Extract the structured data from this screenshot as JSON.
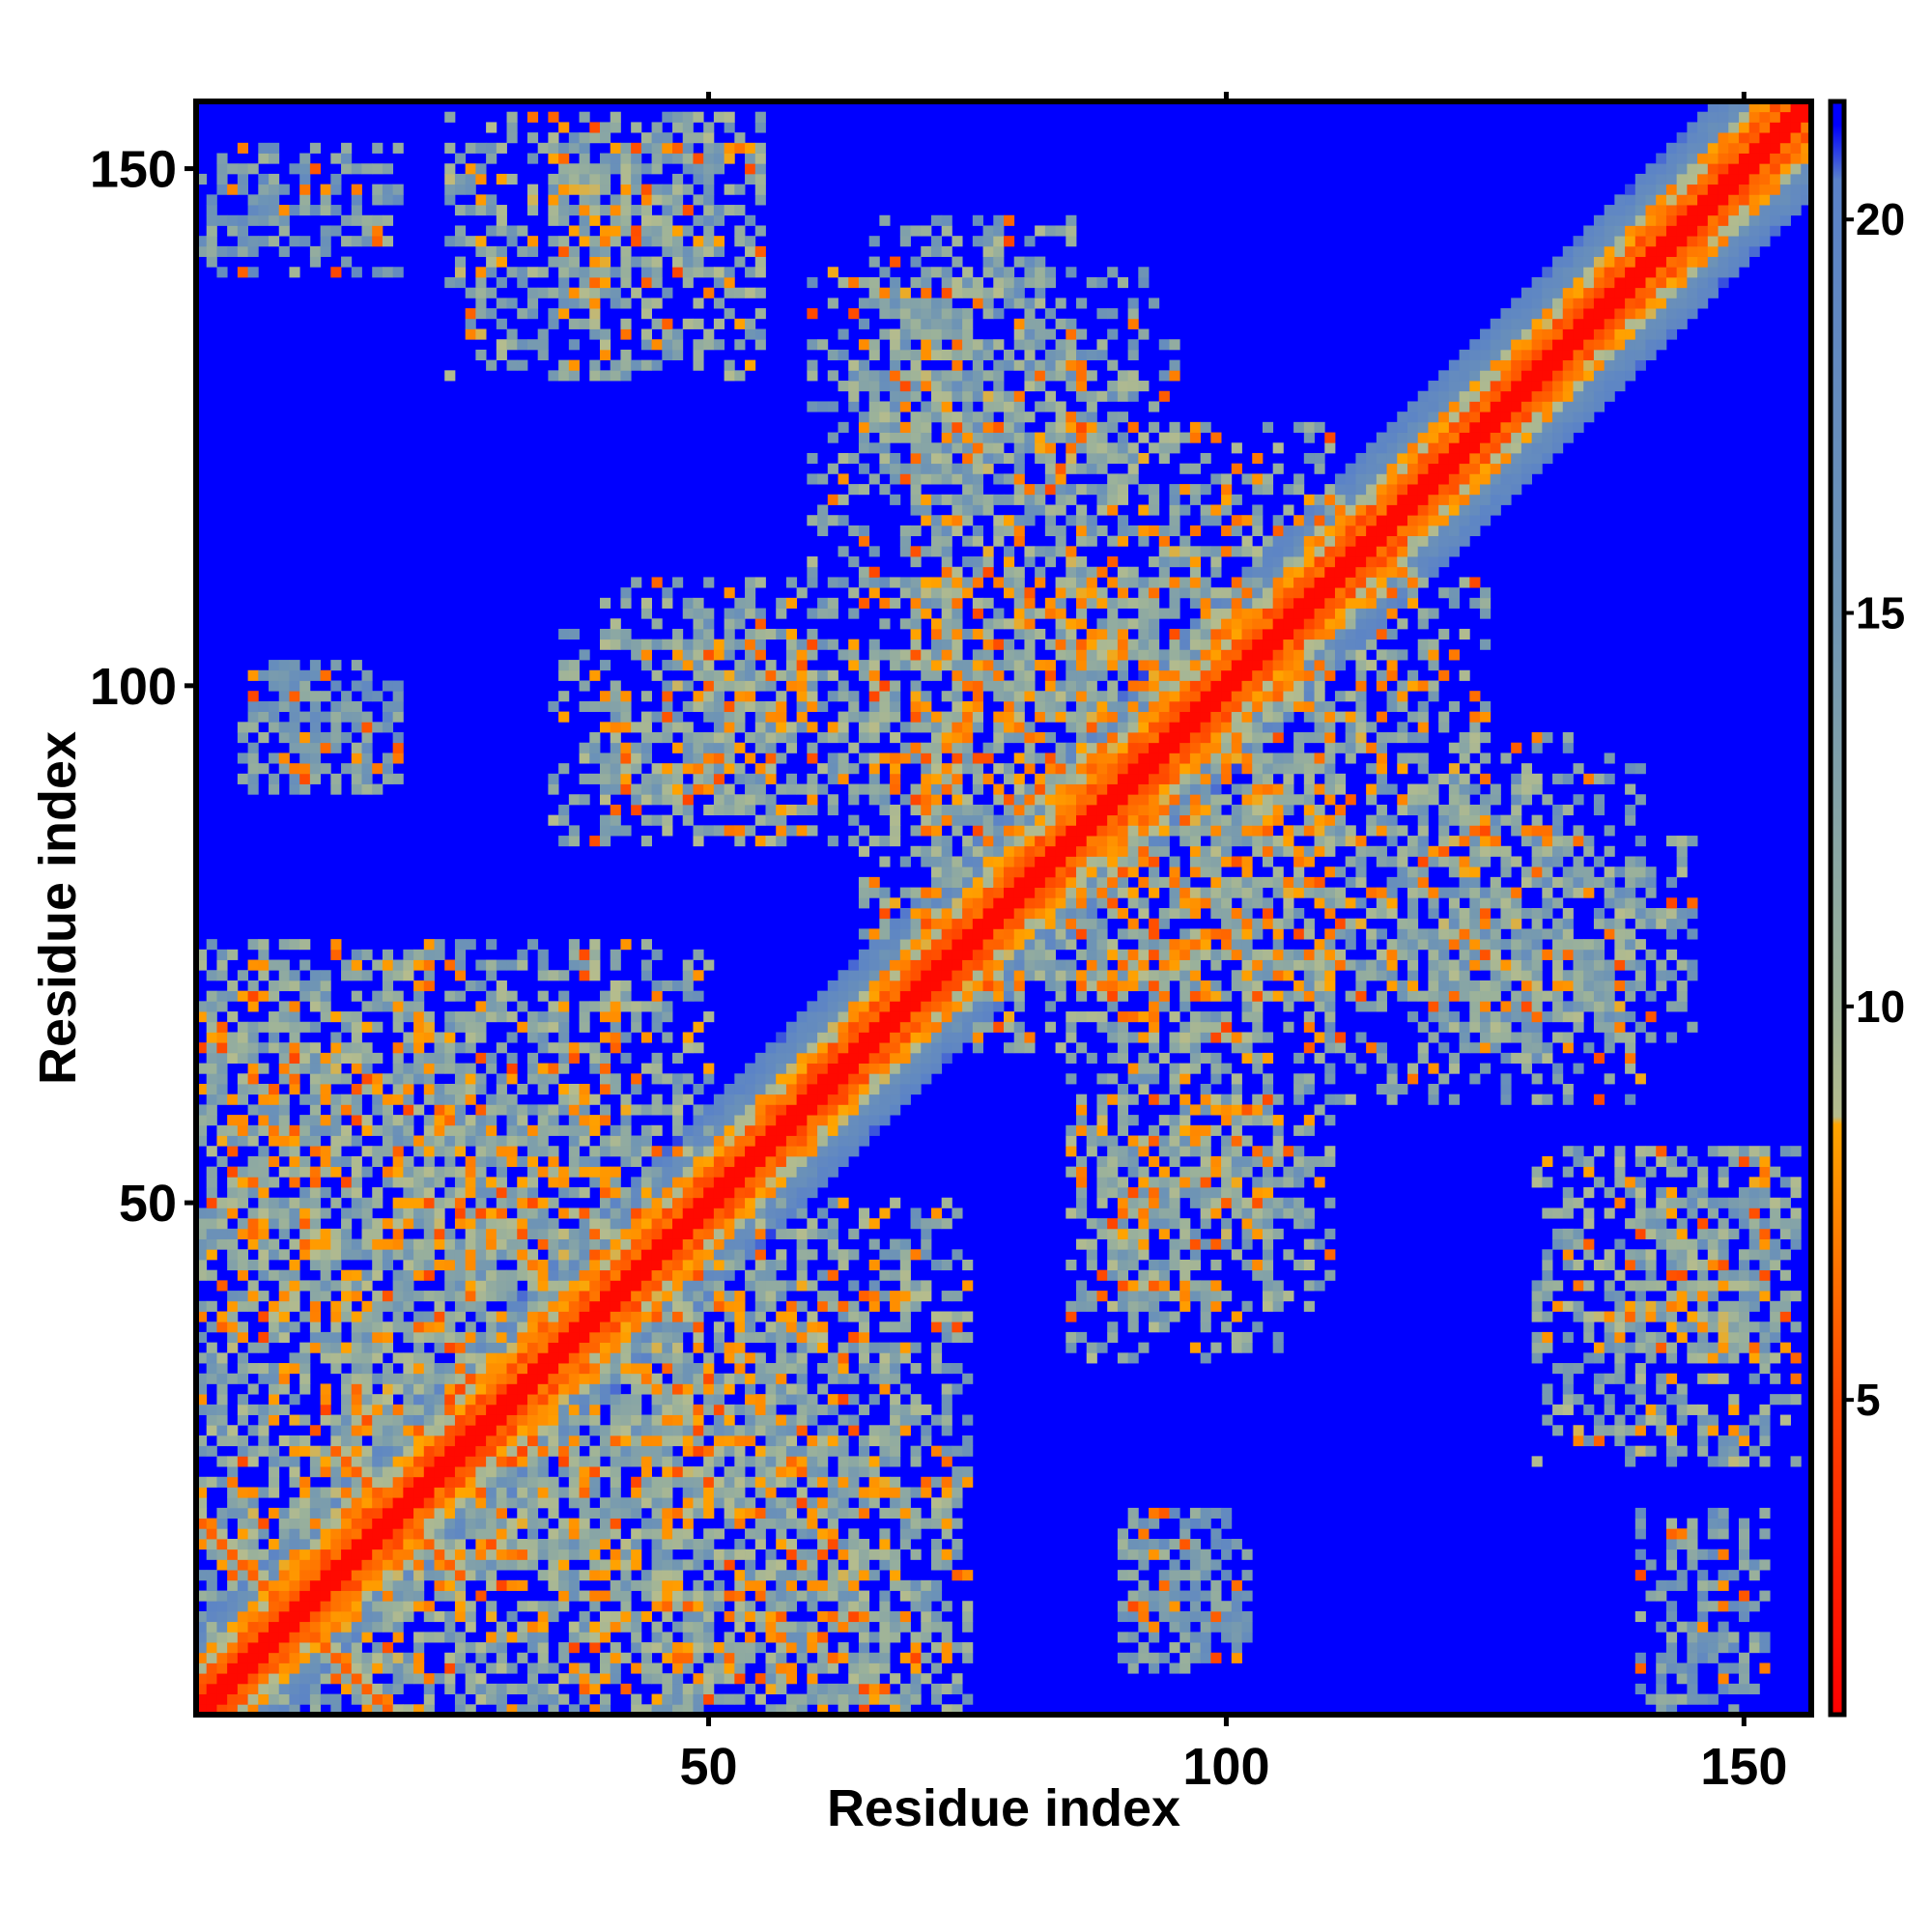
{
  "chart_data": {
    "type": "heatmap",
    "title": "",
    "xlabel": "Residue index",
    "ylabel": "Residue index",
    "n_residues": 156,
    "xlim": [
      1,
      156
    ],
    "ylim": [
      1,
      156
    ],
    "x_ticks": [
      50,
      100,
      150
    ],
    "y_ticks": [
      50,
      100,
      150
    ],
    "colorbar": {
      "range": [
        1,
        21.5
      ],
      "ticks": [
        5,
        10,
        15,
        20
      ]
    },
    "diagonal": {
      "value": 1.5,
      "band_width": 3
    },
    "secondary_contacts": [
      {
        "type": "antidiagonal",
        "sum": 20,
        "from": 1,
        "to": 10,
        "value": 6
      },
      {
        "type": "antidiagonal",
        "sum": 40,
        "from": 14,
        "to": 22,
        "value": 6
      },
      {
        "type": "antidiagonal",
        "sum": 228,
        "from": 110,
        "to": 118,
        "value": 7
      }
    ],
    "cluster_regions": [
      {
        "x": [
          35,
          55
        ],
        "y": [
          140,
          155
        ],
        "value": 13
      },
      {
        "x": [
          60,
          95
        ],
        "y": [
          110,
          140
        ],
        "value": 13
      },
      {
        "x": [
          35,
          60
        ],
        "y": [
          85,
          105
        ],
        "value": 12
      },
      {
        "x": [
          5,
          20
        ],
        "y": [
          90,
          102
        ],
        "value": 15
      },
      {
        "x": [
          65,
          125
        ],
        "y": [
          70,
          110
        ],
        "value": 11
      },
      {
        "x": [
          85,
          110
        ],
        "y": [
          40,
          75
        ],
        "value": 12
      },
      {
        "x": [
          120,
          145
        ],
        "y": [
          65,
          85
        ],
        "value": 13
      },
      {
        "x": [
          130,
          155
        ],
        "y": [
          25,
          55
        ],
        "value": 12
      },
      {
        "x": [
          90,
          100
        ],
        "y": [
          5,
          20
        ],
        "value": 14
      },
      {
        "x": [
          1,
          50
        ],
        "y": [
          1,
          75
        ],
        "value": 12
      },
      {
        "x": [
          45,
          75
        ],
        "y": [
          1,
          45
        ],
        "value": 12
      },
      {
        "x": [
          140,
          152
        ],
        "y": [
          1,
          20
        ],
        "value": 14
      }
    ],
    "background_value": 21.5,
    "colormap": [
      {
        "v": 1,
        "color": "#ff0000"
      },
      {
        "v": 5,
        "color": "#ff4500"
      },
      {
        "v": 8.5,
        "color": "#ffa500"
      },
      {
        "v": 8.6,
        "color": "#b5bc8d"
      },
      {
        "v": 10,
        "color": "#9cb29a"
      },
      {
        "v": 15,
        "color": "#6f95b4"
      },
      {
        "v": 20.5,
        "color": "#5a82c8"
      },
      {
        "v": 21.2,
        "color": "#0000ff"
      }
    ]
  }
}
